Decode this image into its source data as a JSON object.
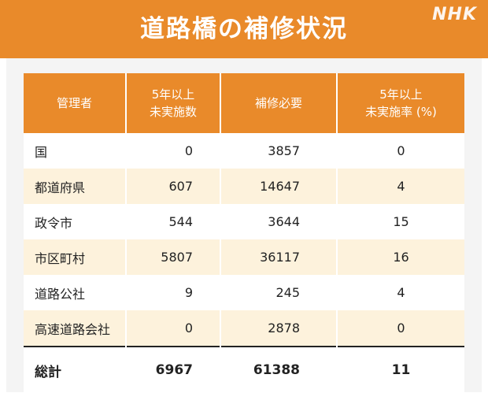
{
  "title": "道路橋の補修状況",
  "logo": "NHK",
  "table": {
    "headers": [
      {
        "line1": "管理者",
        "line2": ""
      },
      {
        "line1": "5年以上",
        "line2": "未実施数"
      },
      {
        "line1": "補修必要",
        "line2": ""
      },
      {
        "line1": "5年以上",
        "line2": "未実施率 (%)"
      }
    ],
    "rows": [
      {
        "admin": "国",
        "unimplemented": "0",
        "repair_needed": "3857",
        "rate": "0"
      },
      {
        "admin": "都道府県",
        "unimplemented": "607",
        "repair_needed": "14647",
        "rate": "4"
      },
      {
        "admin": "政令市",
        "unimplemented": "544",
        "repair_needed": "3644",
        "rate": "15"
      },
      {
        "admin": "市区町村",
        "unimplemented": "5807",
        "repair_needed": "36117",
        "rate": "16"
      },
      {
        "admin": "道路公社",
        "unimplemented": "9",
        "repair_needed": "245",
        "rate": "4"
      },
      {
        "admin": "高速道路会社",
        "unimplemented": "0",
        "repair_needed": "2878",
        "rate": "0"
      }
    ],
    "total": {
      "admin": "総計",
      "unimplemented": "6967",
      "repair_needed": "61388",
      "rate": "11"
    }
  },
  "colors": {
    "accent": "#e98a2a",
    "row_alt": "#fdf2dc",
    "panel": "#f4f4f4"
  }
}
